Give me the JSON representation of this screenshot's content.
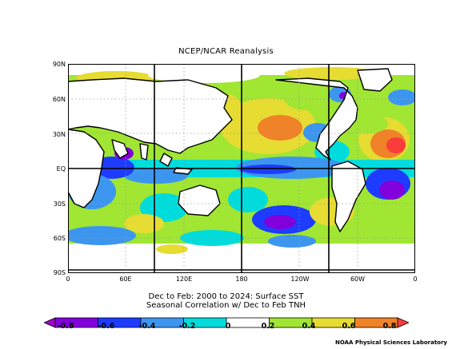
{
  "title": "NCEP/NCAR Reanalysis",
  "subtitle_line1": "Dec to Feb: 2000 to 2024: Surface SST",
  "subtitle_line2": "Seasonal Correlation w/ Dec to Feb TNH",
  "footer": "NOAA Physical Sciences Laboratory",
  "lat_labels": [
    "90N",
    "60N",
    "30N",
    "EQ",
    "30S",
    "60S",
    "90S"
  ],
  "lon_labels": [
    "0",
    "60E",
    "120E",
    "180",
    "120W",
    "60W",
    "0"
  ],
  "colorbar": {
    "labels": [
      "-0.8",
      "-0.6",
      "-0.4",
      "-0.2",
      "0",
      "0.2",
      "0.4",
      "0.6",
      "0.8"
    ],
    "colors": [
      "#a000c8",
      "#8200dc",
      "#1e3cff",
      "#3c96f0",
      "#00dcdc",
      "#ffffff",
      "#a0e632",
      "#e6dc32",
      "#f08228",
      "#fa3c3c"
    ]
  },
  "colors": {
    "land": "#ffffff",
    "coast": "#000000",
    "grid": "#000000",
    "dotted_grid": "#9a9a9a"
  }
}
